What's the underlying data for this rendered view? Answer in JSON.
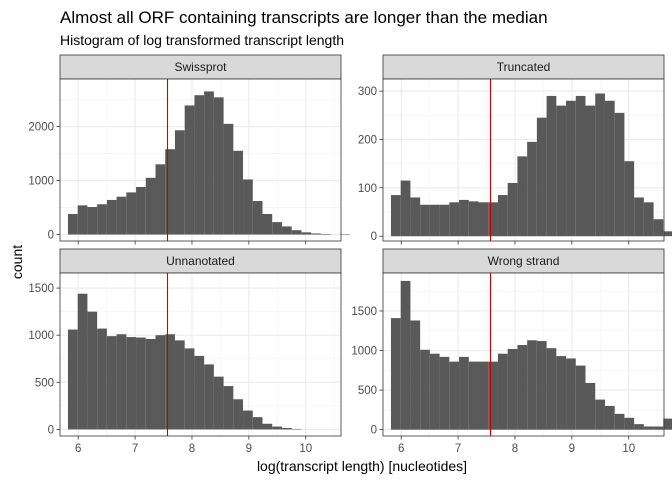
{
  "chart_data": {
    "type": "bar",
    "title": "Almost all ORF containing transcripts are longer than the median",
    "subtitle": "Histogram of log transformed transcript length",
    "xlabel": "log(transcript length) [nucleotides]",
    "ylabel": "count",
    "xlim": [
      5.68,
      10.62
    ],
    "x_ticks": [
      6,
      7,
      8,
      9,
      10
    ],
    "bin_width": 0.171,
    "bin_start": 5.82,
    "median_line": 7.57,
    "median_line_color": "#cc0000",
    "bar_color": "#595959",
    "grid": true,
    "panels": [
      {
        "name": "Swissprot",
        "ylim": [
          -120,
          2880
        ],
        "y_ticks": [
          0,
          1000,
          2000
        ],
        "values": [
          380,
          540,
          510,
          560,
          640,
          700,
          780,
          880,
          1050,
          1300,
          1580,
          1930,
          2390,
          2580,
          2650,
          2540,
          2050,
          1550,
          1020,
          620,
          380,
          230,
          150,
          80,
          40,
          20,
          10,
          0,
          5,
          0
        ]
      },
      {
        "name": "Truncated",
        "ylim": [
          -10,
          325
        ],
        "y_ticks": [
          0,
          100,
          200,
          300
        ],
        "values": [
          85,
          115,
          80,
          65,
          65,
          65,
          70,
          75,
          72,
          70,
          70,
          85,
          110,
          165,
          195,
          245,
          290,
          270,
          280,
          290,
          270,
          295,
          280,
          255,
          155,
          80,
          70,
          35,
          10,
          0
        ]
      },
      {
        "name": "Unnanotated",
        "ylim": [
          -70,
          1660
        ],
        "y_ticks": [
          0,
          500,
          1000,
          1500
        ],
        "values": [
          1060,
          1440,
          1250,
          1070,
          990,
          1010,
          980,
          975,
          960,
          1000,
          1010,
          945,
          860,
          780,
          690,
          560,
          460,
          320,
          200,
          130,
          60,
          30,
          15,
          5,
          0,
          0,
          0,
          0,
          0,
          0
        ]
      },
      {
        "name": "Wrong strand",
        "ylim": [
          -80,
          1980
        ],
        "y_ticks": [
          0,
          500,
          1000,
          1500
        ],
        "values": [
          1410,
          1880,
          1380,
          1010,
          960,
          920,
          860,
          920,
          860,
          860,
          860,
          960,
          1020,
          1070,
          1130,
          1120,
          1030,
          930,
          900,
          810,
          590,
          380,
          300,
          200,
          150,
          70,
          40,
          40,
          140,
          0
        ]
      }
    ]
  }
}
